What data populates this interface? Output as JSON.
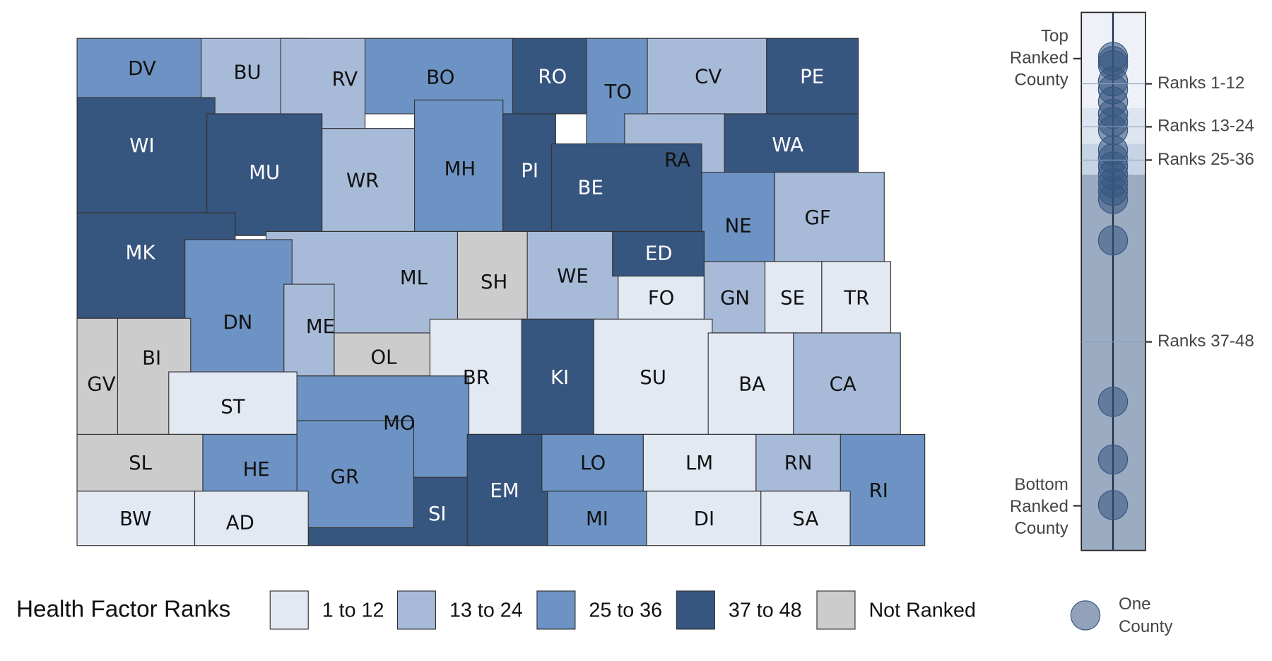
{
  "map": {
    "counties": [
      {
        "label": "DV",
        "color": "#6c93c3"
      },
      {
        "label": "BU",
        "color": "#a7bbd9"
      },
      {
        "label": "RV",
        "color": "#a7bbd9"
      },
      {
        "label": "BO",
        "color": "#6c93c3"
      },
      {
        "label": "RO",
        "color": "#36557f"
      },
      {
        "label": "TO",
        "color": "#6c93c3"
      },
      {
        "label": "CV",
        "color": "#a7bbd9"
      },
      {
        "label": "PE",
        "color": "#36557f"
      },
      {
        "label": "WI",
        "color": "#36557f"
      },
      {
        "label": "RA",
        "color": "#a7bbd9"
      },
      {
        "label": "WA",
        "color": "#36557f"
      },
      {
        "label": "WR",
        "color": "#a7bbd9"
      },
      {
        "label": "MH",
        "color": "#6c93c3"
      },
      {
        "label": "PI",
        "color": "#36557f"
      },
      {
        "label": "BE",
        "color": "#36557f"
      },
      {
        "label": "MU",
        "color": "#36557f"
      },
      {
        "label": "NE",
        "color": "#6c93c3"
      },
      {
        "label": "GF",
        "color": "#a7bbd9"
      },
      {
        "label": "MK",
        "color": "#36557f"
      },
      {
        "label": "ML",
        "color": "#a7bbd9"
      },
      {
        "label": "DN",
        "color": "#6c93c3"
      },
      {
        "label": "SH",
        "color": "#cccccc"
      },
      {
        "label": "WE",
        "color": "#a7bbd9"
      },
      {
        "label": "ED",
        "color": "#36557f"
      },
      {
        "label": "FO",
        "color": "#e3e9f3"
      },
      {
        "label": "GN",
        "color": "#a7bbd9"
      },
      {
        "label": "SE",
        "color": "#e3e9f3"
      },
      {
        "label": "TR",
        "color": "#e3e9f3"
      },
      {
        "label": "ME",
        "color": "#a7bbd9"
      },
      {
        "label": "OL",
        "color": "#cccccc"
      },
      {
        "label": "GV",
        "color": "#cccccc"
      },
      {
        "label": "BI",
        "color": "#cccccc"
      },
      {
        "label": "ST",
        "color": "#e3e9f3"
      },
      {
        "label": "BR",
        "color": "#e3e9f3"
      },
      {
        "label": "KI",
        "color": "#36557f"
      },
      {
        "label": "SU",
        "color": "#e3e9f3"
      },
      {
        "label": "BA",
        "color": "#e3e9f3"
      },
      {
        "label": "CA",
        "color": "#a7bbd9"
      },
      {
        "label": "MO",
        "color": "#6c93c3"
      },
      {
        "label": "SL",
        "color": "#cccccc"
      },
      {
        "label": "HE",
        "color": "#6c93c3"
      },
      {
        "label": "SI",
        "color": "#36557f"
      },
      {
        "label": "GR",
        "color": "#6c93c3"
      },
      {
        "label": "EM",
        "color": "#36557f"
      },
      {
        "label": "LO",
        "color": "#6c93c3"
      },
      {
        "label": "LM",
        "color": "#e3e9f3"
      },
      {
        "label": "RN",
        "color": "#a7bbd9"
      },
      {
        "label": "RI",
        "color": "#6c93c3"
      },
      {
        "label": "BW",
        "color": "#e3e9f3"
      },
      {
        "label": "AD",
        "color": "#e3e9f3"
      },
      {
        "label": "MI",
        "color": "#6c93c3"
      },
      {
        "label": "DI",
        "color": "#e3e9f3"
      },
      {
        "label": "SA",
        "color": "#e3e9f3"
      }
    ]
  },
  "legend": {
    "title": "Health Factor Ranks",
    "items": [
      {
        "label": "1 to 12",
        "color": "#e3e9f3"
      },
      {
        "label": "13 to 24",
        "color": "#a7bbd9"
      },
      {
        "label": "25 to 36",
        "color": "#6c93c3"
      },
      {
        "label": "37 to 48",
        "color": "#36557f"
      },
      {
        "label": "Not Ranked",
        "color": "#cccccc"
      }
    ]
  },
  "strip": {
    "top_label": [
      "Top",
      "Ranked",
      "County"
    ],
    "bottom_label": [
      "Bottom",
      "Ranked",
      "County"
    ],
    "rank_labels": [
      "Ranks 1-12",
      "Ranks 13-24",
      "Ranks 25-36",
      "Ranks 37-48"
    ],
    "dot_legend": [
      "One",
      "County"
    ]
  }
}
